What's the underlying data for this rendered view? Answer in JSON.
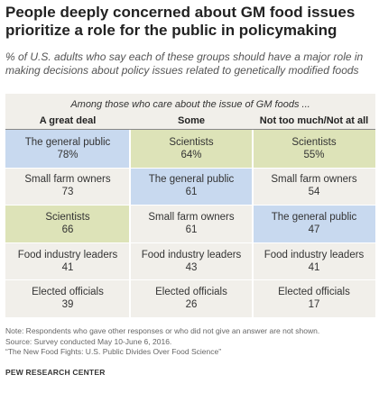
{
  "title": "People deeply concerned about GM food issues prioritize a role for the public in policymaking",
  "subtitle": "% of U.S. adults who say each of these groups should have a major role in making decisions about policy issues related to genetically modified foods",
  "colors": {
    "public_highlight": "#c8d9ef",
    "scientist_highlight": "#dde3b8",
    "panel": "#f1efea"
  },
  "chart_data": {
    "type": "table",
    "group_label": "Among those who care about the issue of GM foods ...",
    "columns": [
      {
        "name": "A great deal",
        "rows": [
          {
            "group": "The general public",
            "value": "78%"
          },
          {
            "group": "Small farm owners",
            "value": "73"
          },
          {
            "group": "Scientists",
            "value": "66"
          },
          {
            "group": "Food industry leaders",
            "value": "41"
          },
          {
            "group": "Elected officials",
            "value": "39"
          }
        ]
      },
      {
        "name": "Some",
        "rows": [
          {
            "group": "Scientists",
            "value": "64%"
          },
          {
            "group": "The general public",
            "value": "61"
          },
          {
            "group": "Small farm owners",
            "value": "61"
          },
          {
            "group": "Food industry leaders",
            "value": "43"
          },
          {
            "group": "Elected officials",
            "value": "26"
          }
        ]
      },
      {
        "name": "Not too much/Not at all",
        "rows": [
          {
            "group": "Scientists",
            "value": "55%"
          },
          {
            "group": "Small farm owners",
            "value": "54"
          },
          {
            "group": "The general public",
            "value": "47"
          },
          {
            "group": "Food industry leaders",
            "value": "41"
          },
          {
            "group": "Elected officials",
            "value": "17"
          }
        ]
      }
    ]
  },
  "note": "Note: Respondents who gave other responses or who did not give an answer are not shown.",
  "source": "Source: Survey conducted May 10-June 6, 2016.",
  "report": "“The New Food Fights: U.S. Public Divides Over Food Science”",
  "credit": "PEW RESEARCH CENTER"
}
